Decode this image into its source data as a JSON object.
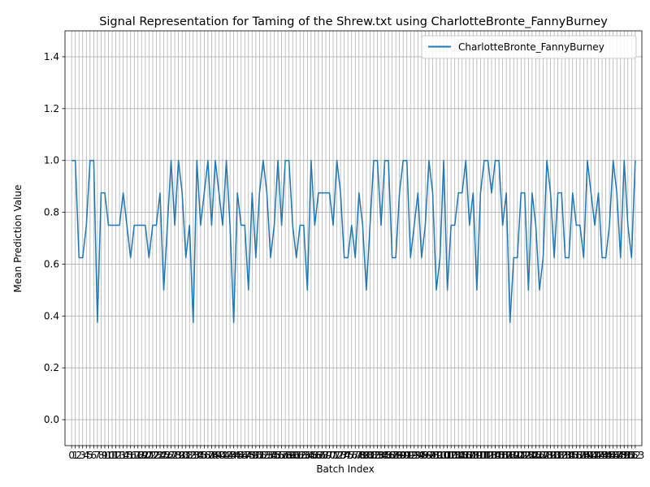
{
  "chart_data": {
    "type": "line",
    "title": "Signal Representation for Taming of the Shrew.txt using CharlotteBronte_FannyBurney",
    "xlabel": "Batch Index",
    "ylabel": "Mean Prediction Value",
    "ylim": [
      -0.1,
      1.5
    ],
    "xlim": [
      -1.8,
      154.8
    ],
    "grid": true,
    "legend_position": "top-right",
    "y_ticks": [
      0.0,
      0.2,
      0.4,
      0.6,
      0.8,
      1.0,
      1.2,
      1.4
    ],
    "series": [
      {
        "name": "CharlotteBronte_FannyBurney",
        "color": "#1f77b4",
        "x": [
          0,
          1,
          2,
          3,
          4,
          5,
          6,
          7,
          8,
          9,
          10,
          11,
          12,
          13,
          14,
          15,
          16,
          17,
          18,
          19,
          20,
          21,
          22,
          23,
          24,
          25,
          26,
          27,
          28,
          29,
          30,
          31,
          32,
          33,
          34,
          35,
          36,
          37,
          38,
          39,
          40,
          41,
          42,
          43,
          44,
          45,
          46,
          47,
          48,
          49,
          50,
          51,
          52,
          53,
          54,
          55,
          56,
          57,
          58,
          59,
          60,
          61,
          62,
          63,
          64,
          65,
          66,
          67,
          68,
          69,
          70,
          71,
          72,
          73,
          74,
          75,
          76,
          77,
          78,
          79,
          80,
          81,
          82,
          83,
          84,
          85,
          86,
          87,
          88,
          89,
          90,
          91,
          92,
          93,
          94,
          95,
          96,
          97,
          98,
          99,
          100,
          101,
          102,
          103,
          104,
          105,
          106,
          107,
          108,
          109,
          110,
          111,
          112,
          113,
          114,
          115,
          116,
          117,
          118,
          119,
          120,
          121,
          122,
          123,
          124,
          125,
          126,
          127,
          128,
          129,
          130,
          131,
          132,
          133,
          134,
          135,
          136,
          137,
          138,
          139,
          140,
          141,
          142,
          143,
          144,
          145,
          146,
          147,
          148,
          149,
          150,
          151,
          152,
          153
        ],
        "values": [
          1.0,
          1.0,
          0.625,
          0.625,
          0.75,
          1.0,
          1.0,
          0.375,
          0.875,
          0.875,
          0.75,
          0.75,
          0.75,
          0.75,
          0.875,
          0.75,
          0.625,
          0.75,
          0.75,
          0.75,
          0.75,
          0.625,
          0.75,
          0.75,
          0.875,
          0.5,
          0.75,
          1.0,
          0.75,
          1.0,
          0.875,
          0.625,
          0.75,
          0.375,
          1.0,
          0.75,
          0.875,
          1.0,
          0.75,
          1.0,
          0.875,
          0.75,
          1.0,
          0.75,
          0.375,
          0.875,
          0.75,
          0.75,
          0.5,
          0.875,
          0.625,
          0.875,
          1.0,
          0.875,
          0.625,
          0.75,
          1.0,
          0.75,
          1.0,
          1.0,
          0.75,
          0.625,
          0.75,
          0.75,
          0.5,
          1.0,
          0.75,
          0.875,
          0.875,
          0.875,
          0.875,
          0.75,
          1.0,
          0.875,
          0.625,
          0.625,
          0.75,
          0.625,
          0.875,
          0.75,
          0.5,
          0.75,
          1.0,
          1.0,
          0.75,
          1.0,
          1.0,
          0.625,
          0.625,
          0.875,
          1.0,
          1.0,
          0.625,
          0.75,
          0.875,
          0.625,
          0.75,
          1.0,
          0.875,
          0.5,
          0.625,
          1.0,
          0.5,
          0.75,
          0.75,
          0.875,
          0.875,
          1.0,
          0.75,
          0.875,
          0.5,
          0.875,
          1.0,
          1.0,
          0.875,
          1.0,
          1.0,
          0.75,
          0.875,
          0.375,
          0.625,
          0.625,
          0.875,
          0.875,
          0.5,
          0.875,
          0.75,
          0.5,
          0.625,
          1.0,
          0.875,
          0.625,
          0.875,
          0.875,
          0.625,
          0.625,
          0.875,
          0.75,
          0.75,
          0.625,
          1.0,
          0.875,
          0.75,
          0.875,
          0.625,
          0.625,
          0.75,
          1.0,
          0.875,
          0.625,
          1.0,
          0.75,
          0.625,
          1.0
        ]
      }
    ]
  }
}
